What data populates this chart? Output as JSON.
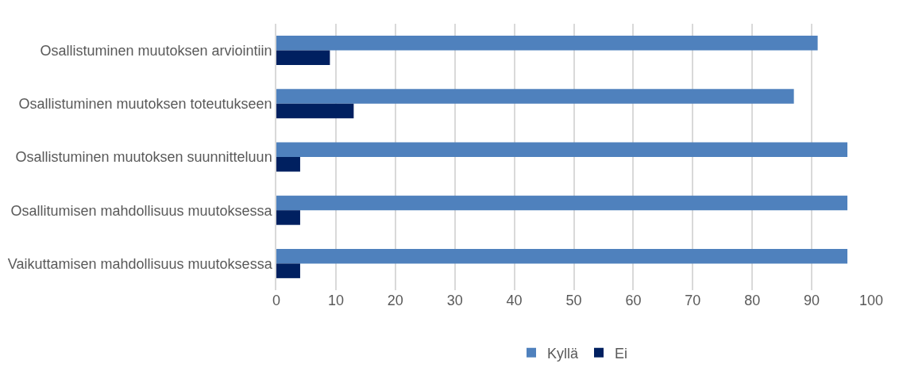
{
  "chart_data": {
    "type": "bar",
    "orientation": "horizontal",
    "categories": [
      "Osallistuminen muutoksen arviointiin",
      "Osallistuminen muutoksen toteutukseen",
      "Osallistuminen muutoksen suunnitteluun",
      "Osallitumisen mahdollisuus muutoksessa",
      "Vaikuttamisen mahdollisuus muutoksessa"
    ],
    "series": [
      {
        "name": "Kyllä",
        "color": "#4f81bd",
        "values": [
          91,
          87,
          96,
          96,
          96
        ]
      },
      {
        "name": "Ei",
        "color": "#002060",
        "values": [
          9,
          13,
          4,
          4,
          4
        ]
      }
    ],
    "xlim": [
      0,
      100
    ],
    "xticks": [
      0,
      10,
      20,
      30,
      40,
      50,
      60,
      70,
      80,
      90,
      100
    ],
    "grid": "x",
    "legend": "bottom"
  }
}
